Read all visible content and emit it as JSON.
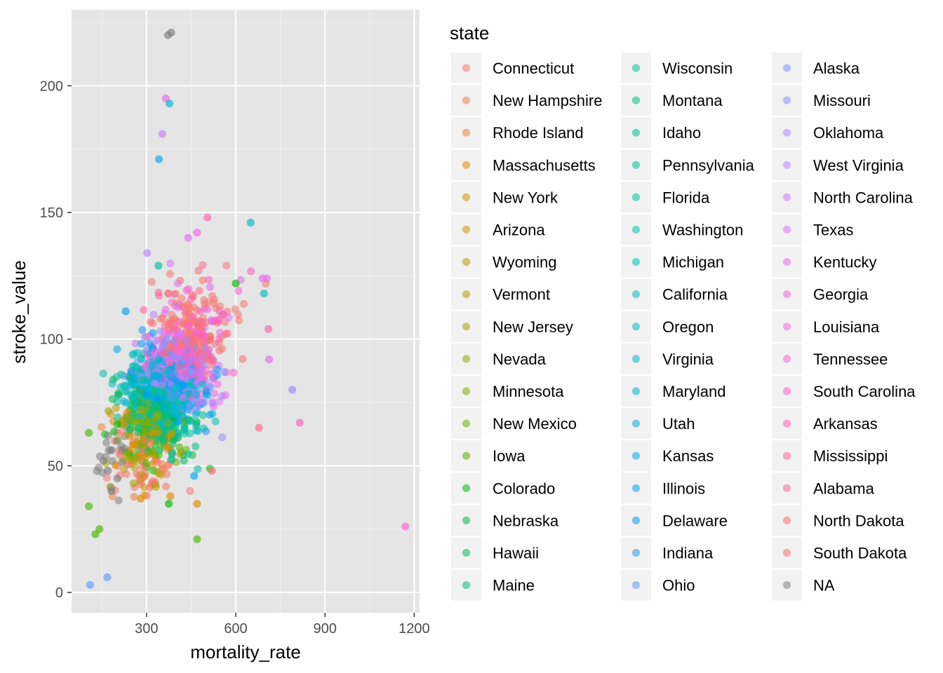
{
  "chart_data": {
    "type": "scatter",
    "xlabel": "mortality_rate",
    "ylabel": "stroke_value",
    "xlim": [
      48,
      1218
    ],
    "ylim": [
      -8,
      230
    ],
    "x_ticks": [
      300,
      600,
      900,
      1200
    ],
    "x_minor_ticks": [
      150,
      450,
      750,
      1050
    ],
    "y_ticks": [
      0,
      50,
      100,
      150,
      200
    ],
    "y_minor_ticks": [
      25,
      75,
      125,
      175,
      225
    ],
    "grid": true,
    "background": "#e5e5e5",
    "point_alpha": 0.55,
    "legend": {
      "title": "state",
      "placement": "right",
      "columns": 3
    },
    "series": [
      {
        "name": "Connecticut",
        "color": "#F8766D"
      },
      {
        "name": "New Hampshire",
        "color": "#F47D58"
      },
      {
        "name": "Rhode Island",
        "color": "#ED8141"
      },
      {
        "name": "Massachusetts",
        "color": "#E38900"
      },
      {
        "name": "New York",
        "color": "#D89000"
      },
      {
        "name": "Arizona",
        "color": "#CD9600"
      },
      {
        "name": "Wyoming",
        "color": "#C09B00"
      },
      {
        "name": "Vermont",
        "color": "#B3A000"
      },
      {
        "name": "New Jersey",
        "color": "#A3A500"
      },
      {
        "name": "Nevada",
        "color": "#93AA00"
      },
      {
        "name": "Minnesota",
        "color": "#7FAE00"
      },
      {
        "name": "New Mexico",
        "color": "#68B200"
      },
      {
        "name": "Iowa",
        "color": "#4CB500"
      },
      {
        "name": "Colorado",
        "color": "#00B900"
      },
      {
        "name": "Nebraska",
        "color": "#00BB4E"
      },
      {
        "name": "Hawaii",
        "color": "#00BD5C"
      },
      {
        "name": "Maine",
        "color": "#00BF7D"
      },
      {
        "name": "Wisconsin",
        "color": "#00BF96"
      },
      {
        "name": "Montana",
        "color": "#00BF7D"
      },
      {
        "name": "Idaho",
        "color": "#00C08B"
      },
      {
        "name": "Pennsylvania",
        "color": "#00C097"
      },
      {
        "name": "Florida",
        "color": "#00C1A3"
      },
      {
        "name": "Washington",
        "color": "#00C0AE"
      },
      {
        "name": "Michigan",
        "color": "#00BFB8"
      },
      {
        "name": "California",
        "color": "#00BCC2"
      },
      {
        "name": "Oregon",
        "color": "#00B9CB"
      },
      {
        "name": "Virginia",
        "color": "#00B6D4"
      },
      {
        "name": "Maryland",
        "color": "#00B2DD"
      },
      {
        "name": "Utah",
        "color": "#00ADE4"
      },
      {
        "name": "Kansas",
        "color": "#00A8EB"
      },
      {
        "name": "Illinois",
        "color": "#00A2F1"
      },
      {
        "name": "Delaware",
        "color": "#009BF5"
      },
      {
        "name": "Indiana",
        "color": "#1F95F8"
      },
      {
        "name": "Ohio",
        "color": "#619CFF"
      },
      {
        "name": "Alaska",
        "color": "#7B95FF"
      },
      {
        "name": "Missouri",
        "color": "#978EFF"
      },
      {
        "name": "Oklahoma",
        "color": "#AC88FF"
      },
      {
        "name": "West Virginia",
        "color": "#BE80FF"
      },
      {
        "name": "North Carolina",
        "color": "#CD79F8"
      },
      {
        "name": "Texas",
        "color": "#DB72FB"
      },
      {
        "name": "Kentucky",
        "color": "#E56CEB"
      },
      {
        "name": "Georgia",
        "color": "#EE67DF"
      },
      {
        "name": "Louisiana",
        "color": "#F564E3"
      },
      {
        "name": "Tennessee",
        "color": "#FA62D2"
      },
      {
        "name": "South Carolina",
        "color": "#FD61C1"
      },
      {
        "name": "Arkansas",
        "color": "#FF61AF"
      },
      {
        "name": "Mississippi",
        "color": "#FF639D"
      },
      {
        "name": "Alabama",
        "color": "#FE678A"
      },
      {
        "name": "North Dakota",
        "color": "#FC6C77"
      },
      {
        "name": "South Dakota",
        "color": "#F8766D"
      },
      {
        "name": "NA",
        "color": "#7F7F7F"
      }
    ],
    "points": [
      {
        "x": 372,
        "y": 220,
        "s": 50
      },
      {
        "x": 383,
        "y": 221,
        "s": 50
      },
      {
        "x": 365,
        "y": 195,
        "s": 40
      },
      {
        "x": 377,
        "y": 193,
        "s": 25
      },
      {
        "x": 353,
        "y": 181,
        "s": 38
      },
      {
        "x": 342,
        "y": 171,
        "s": 28
      },
      {
        "x": 650,
        "y": 146,
        "s": 26
      },
      {
        "x": 1170,
        "y": 26,
        "s": 43
      },
      {
        "x": 815,
        "y": 67,
        "s": 44
      },
      {
        "x": 790,
        "y": 80,
        "s": 35
      },
      {
        "x": 110,
        "y": 3,
        "s": 33
      },
      {
        "x": 168,
        "y": 6,
        "s": 33
      },
      {
        "x": 128,
        "y": 23,
        "s": 12
      },
      {
        "x": 142,
        "y": 25,
        "s": 12
      },
      {
        "x": 106,
        "y": 34,
        "s": 12
      },
      {
        "x": 106,
        "y": 63,
        "s": 12
      },
      {
        "x": 470,
        "y": 21,
        "s": 12
      },
      {
        "x": 375,
        "y": 35,
        "s": 13
      },
      {
        "x": 470,
        "y": 35,
        "s": 3
      },
      {
        "x": 460,
        "y": 46,
        "s": 29
      },
      {
        "x": 280,
        "y": 37,
        "s": 3
      },
      {
        "x": 380,
        "y": 38,
        "s": 3
      },
      {
        "x": 505,
        "y": 148,
        "s": 45
      },
      {
        "x": 470,
        "y": 142,
        "s": 42
      },
      {
        "x": 440,
        "y": 140,
        "s": 40
      },
      {
        "x": 302,
        "y": 134,
        "s": 37
      },
      {
        "x": 690,
        "y": 124,
        "s": 40
      },
      {
        "x": 705,
        "y": 124,
        "s": 40
      },
      {
        "x": 710,
        "y": 104,
        "s": 45
      },
      {
        "x": 712,
        "y": 92,
        "s": 40
      },
      {
        "x": 678,
        "y": 65,
        "s": 47
      },
      {
        "x": 520,
        "y": 48,
        "s": 48
      },
      {
        "x": 182,
        "y": 40,
        "s": 50
      },
      {
        "x": 170,
        "y": 48,
        "s": 50
      },
      {
        "x": 202,
        "y": 45,
        "s": 50
      },
      {
        "x": 155,
        "y": 52,
        "s": 50
      },
      {
        "x": 230,
        "y": 111,
        "s": 30
      },
      {
        "x": 340,
        "y": 129,
        "s": 21
      },
      {
        "x": 695,
        "y": 118,
        "s": 23
      },
      {
        "x": 600,
        "y": 122,
        "s": 13
      }
    ],
    "cluster": {
      "n": 1500,
      "seed": 7,
      "center": {
        "x": 370,
        "y": 80
      },
      "spread": {
        "x": 85,
        "y": 17
      },
      "correlation": 0.55,
      "x_range": [
        130,
        720
      ],
      "y_range": [
        35,
        130
      ]
    }
  }
}
